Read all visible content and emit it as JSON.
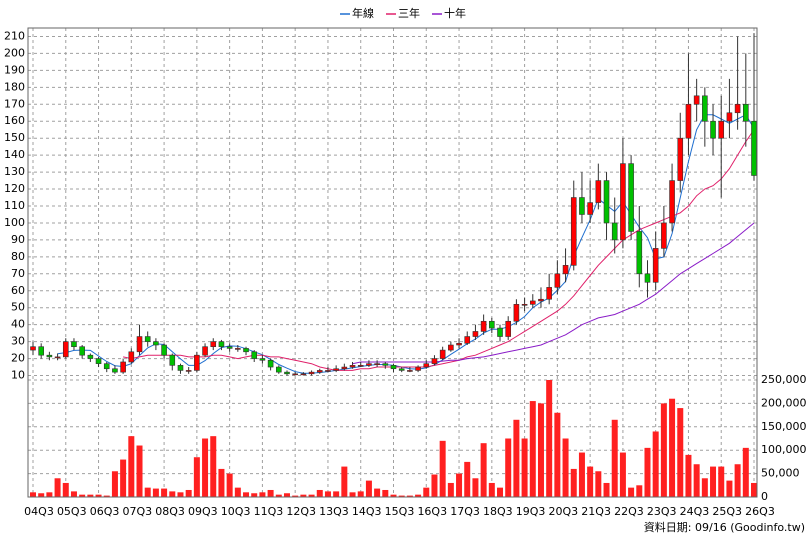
{
  "chart_data": {
    "type": "candlestick",
    "categories": [
      "04Q3",
      null,
      null,
      null,
      "05Q3",
      null,
      null,
      null,
      "06Q3",
      null,
      null,
      null,
      "07Q3",
      null,
      null,
      null,
      "08Q3",
      null,
      null,
      null,
      "09Q3",
      null,
      null,
      null,
      "10Q3",
      null,
      null,
      null,
      "11Q3",
      null,
      null,
      null,
      "12Q3",
      null,
      null,
      null,
      "13Q3",
      null,
      null,
      null,
      "14Q3",
      null,
      null,
      null,
      "15Q3",
      null,
      null,
      null,
      "16Q3",
      null,
      null,
      null,
      "17Q3",
      null,
      null,
      null,
      "18Q3",
      null,
      null,
      null,
      "19Q3",
      null,
      null,
      null,
      "20Q3",
      null,
      null,
      null,
      "21Q3",
      null,
      null,
      null,
      "22Q3",
      null,
      null,
      null,
      "23Q3",
      null,
      null,
      null,
      "24Q3",
      null,
      null,
      null,
      "25Q3",
      null,
      null,
      null,
      "26Q3"
    ],
    "open": [
      25,
      27,
      22,
      21,
      21,
      30,
      27,
      22,
      20,
      17,
      14,
      12,
      18,
      24,
      33,
      30,
      28,
      22,
      16,
      13,
      13,
      22,
      27,
      30,
      27,
      26,
      26,
      24,
      20,
      19,
      15,
      12,
      11,
      11,
      11,
      12,
      13,
      13,
      14,
      15,
      16,
      16,
      17,
      17,
      16,
      14,
      13,
      13,
      15,
      17,
      20,
      25,
      28,
      29,
      33,
      36,
      42,
      38,
      33,
      42,
      52,
      52,
      54,
      55,
      62,
      70,
      75,
      115,
      105,
      112,
      125,
      100,
      90,
      135,
      95,
      70,
      65,
      85,
      100,
      125,
      150,
      170,
      175,
      160,
      150,
      160,
      165,
      170,
      160
    ],
    "high": [
      30,
      29,
      24,
      23,
      32,
      32,
      28,
      23,
      21,
      18,
      16,
      20,
      26,
      40,
      36,
      32,
      29,
      23,
      17,
      15,
      24,
      29,
      32,
      31,
      29,
      28,
      27,
      25,
      22,
      20,
      16,
      13,
      12,
      12,
      13,
      14,
      15,
      16,
      17,
      18,
      18,
      19,
      19,
      18,
      17,
      15,
      15,
      16,
      19,
      22,
      27,
      30,
      32,
      36,
      40,
      46,
      44,
      40,
      45,
      55,
      56,
      58,
      62,
      70,
      78,
      85,
      125,
      130,
      125,
      135,
      130,
      115,
      150,
      140,
      110,
      78,
      95,
      110,
      135,
      165,
      200,
      185,
      180,
      170,
      175,
      185,
      210,
      200,
      212
    ],
    "low": [
      22,
      20,
      19,
      19,
      20,
      25,
      20,
      18,
      15,
      12,
      11,
      11,
      17,
      22,
      27,
      25,
      20,
      13,
      11,
      11,
      12,
      21,
      25,
      25,
      24,
      24,
      22,
      18,
      17,
      13,
      11,
      10,
      10,
      10,
      10,
      11,
      12,
      12,
      13,
      14,
      15,
      15,
      15,
      14,
      12,
      12,
      12,
      12,
      14,
      16,
      19,
      24,
      26,
      28,
      31,
      34,
      35,
      30,
      31,
      40,
      48,
      50,
      50,
      52,
      58,
      65,
      72,
      100,
      100,
      108,
      90,
      82,
      85,
      90,
      62,
      56,
      60,
      80,
      95,
      118,
      140,
      160,
      145,
      140,
      115,
      150,
      155,
      145,
      125
    ],
    "close": [
      27,
      22,
      21,
      21,
      30,
      27,
      22,
      20,
      17,
      14,
      12,
      18,
      24,
      33,
      30,
      28,
      22,
      16,
      13,
      13,
      22,
      27,
      30,
      27,
      26,
      26,
      24,
      20,
      19,
      15,
      12,
      11,
      11,
      11,
      12,
      13,
      13,
      14,
      15,
      16,
      16,
      17,
      17,
      16,
      14,
      13,
      13,
      15,
      17,
      20,
      25,
      28,
      29,
      33,
      36,
      42,
      38,
      33,
      42,
      52,
      52,
      54,
      55,
      62,
      70,
      75,
      115,
      105,
      112,
      125,
      100,
      90,
      135,
      95,
      70,
      65,
      85,
      100,
      125,
      150,
      170,
      175,
      160,
      150,
      160,
      165,
      170,
      160,
      128
    ],
    "up_color": "#ff0000",
    "down_color": "#00c000",
    "ylim": [
      5,
      215
    ],
    "yticks": [
      10,
      20,
      30,
      40,
      50,
      60,
      70,
      80,
      90,
      100,
      110,
      120,
      130,
      140,
      150,
      160,
      170,
      180,
      190,
      200,
      210
    ],
    "series": [
      {
        "name": "年線",
        "color": "#1f6fd0",
        "values": [
          null,
          null,
          null,
          22.8,
          23.5,
          24.8,
          25,
          24.8,
          21.5,
          18.3,
          15.8,
          15.3,
          17,
          21.8,
          26.3,
          28.8,
          28.3,
          24,
          19.8,
          16,
          16,
          18.8,
          23,
          26.5,
          27.5,
          27.3,
          25.8,
          24,
          22.3,
          19.5,
          16.5,
          14.3,
          12.3,
          11.3,
          11.3,
          11.8,
          12.3,
          13,
          13.8,
          14.5,
          15.3,
          16,
          16.5,
          16.5,
          16,
          15,
          14,
          13.8,
          14.5,
          16.3,
          19.3,
          22.5,
          25.5,
          28.8,
          31.5,
          35,
          37.3,
          37.3,
          38.8,
          41.3,
          44.8,
          50,
          53.3,
          55.8,
          60.3,
          65.5,
          80.5,
          91.3,
          101.8,
          114.3,
          110.5,
          106.8,
          112.5,
          105,
          97.5,
          91.3,
          78.8,
          80,
          93.8,
          115,
          136.3,
          155,
          163.8,
          163.8,
          161.3,
          158.8,
          161.3,
          163.8,
          155.8
        ]
      },
      {
        "name": "三年",
        "color": "#e0206a",
        "values": [
          null,
          null,
          null,
          null,
          null,
          null,
          null,
          null,
          null,
          null,
          null,
          21,
          20,
          21,
          22,
          22,
          22,
          22,
          22,
          21,
          21,
          21,
          22,
          22,
          21,
          20,
          21,
          22,
          22,
          21,
          21,
          20,
          19,
          18,
          17,
          15,
          14,
          13,
          13,
          13,
          14,
          14,
          15,
          15,
          15,
          15,
          15,
          15,
          15,
          16,
          17,
          18,
          19,
          21,
          22,
          24,
          26,
          28,
          30,
          33,
          36,
          39,
          42,
          45,
          48,
          52,
          57,
          63,
          69,
          75,
          80,
          85,
          90,
          93,
          96,
          98,
          100,
          102,
          104,
          106,
          110,
          116,
          120,
          122,
          126,
          132,
          140,
          148,
          155
        ]
      },
      {
        "name": "十年",
        "color": "#8a1cc8",
        "values": [
          null,
          null,
          null,
          null,
          null,
          null,
          null,
          null,
          null,
          null,
          null,
          null,
          null,
          null,
          null,
          null,
          null,
          null,
          null,
          null,
          null,
          null,
          null,
          null,
          null,
          null,
          null,
          null,
          null,
          null,
          null,
          null,
          null,
          null,
          null,
          null,
          null,
          null,
          null,
          17,
          18,
          18,
          18,
          18,
          18,
          18,
          18,
          18,
          18,
          18,
          18.5,
          19,
          19,
          20,
          20.5,
          21,
          22,
          23,
          24,
          25,
          26,
          27,
          28,
          30,
          32,
          34,
          37,
          40,
          42,
          44,
          45,
          46,
          48,
          50,
          52,
          55,
          58,
          62,
          66,
          70,
          73,
          76,
          79,
          82,
          85,
          88,
          92,
          96,
          100
        ]
      }
    ],
    "volume": [
      10000,
      8000,
      10000,
      40000,
      30000,
      12000,
      5000,
      5000,
      5000,
      3000,
      55000,
      80000,
      130000,
      110000,
      20000,
      18000,
      18000,
      12000,
      10000,
      15000,
      85000,
      125000,
      130000,
      60000,
      50000,
      20000,
      10000,
      8000,
      10000,
      15000,
      5000,
      8000,
      3000,
      5000,
      5000,
      15000,
      12000,
      12000,
      65000,
      10000,
      12000,
      35000,
      18000,
      15000,
      5000,
      3000,
      3000,
      5000,
      20000,
      48000,
      120000,
      30000,
      50000,
      75000,
      40000,
      115000,
      30000,
      20000,
      125000,
      165000,
      125000,
      205000,
      200000,
      250000,
      180000,
      125000,
      60000,
      95000,
      65000,
      55000,
      30000,
      165000,
      95000,
      20000,
      25000,
      105000,
      140000,
      200000,
      210000,
      190000,
      90000,
      70000,
      40000,
      65000,
      65000,
      35000,
      70000,
      105000,
      30000
    ],
    "volume_color": "#ff2020",
    "y2lim": [
      0,
      250000
    ],
    "y2ticks": [
      0,
      {
        "value": 50000,
        "label": "50,000"
      },
      {
        "value": 100000,
        "label": "100,000"
      },
      {
        "value": 150000,
        "label": "150,000"
      },
      {
        "value": 200000,
        "label": "200,000"
      },
      {
        "value": 250000,
        "label": "250,000"
      }
    ],
    "grid": true,
    "legend": "top",
    "source_note": "資料日期: 09/16 (Goodinfo.tw)"
  }
}
